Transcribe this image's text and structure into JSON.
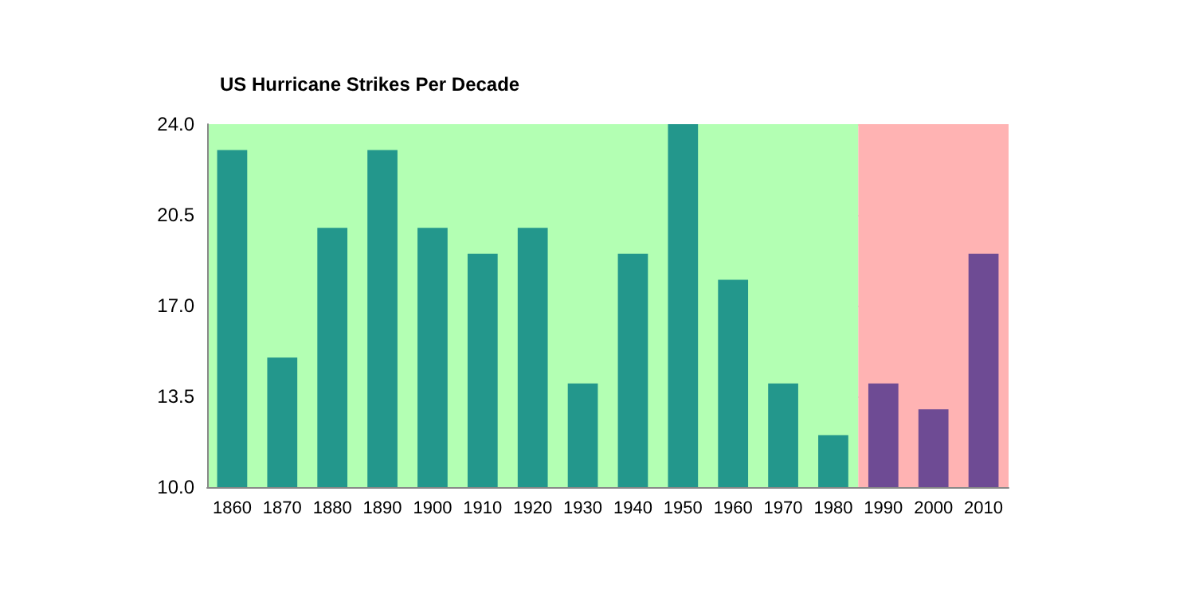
{
  "chart_data": {
    "type": "bar",
    "title": "US Hurricane Strikes Per Decade",
    "x": [
      1860,
      1870,
      1880,
      1890,
      1900,
      1910,
      1920,
      1930,
      1940,
      1950,
      1960,
      1970,
      1980,
      1990,
      2000,
      2010
    ],
    "values": [
      23,
      15,
      20,
      23,
      20,
      19,
      20,
      14,
      19,
      24,
      18,
      14,
      12,
      14,
      13,
      19
    ],
    "colors": [
      "#23978c",
      "#23978c",
      "#23978c",
      "#23978c",
      "#23978c",
      "#23978c",
      "#23978c",
      "#23978c",
      "#23978c",
      "#23978c",
      "#23978c",
      "#23978c",
      "#23978c",
      "#6e4b94",
      "#6e4b94",
      "#6e4b94"
    ],
    "xlim": [
      1855,
      2015
    ],
    "xticks": [
      1860,
      1870,
      1880,
      1890,
      1900,
      1910,
      1920,
      1930,
      1940,
      1950,
      1960,
      1970,
      1980,
      1990,
      2000,
      2010
    ],
    "ylim": [
      10,
      24
    ],
    "yticks": [
      {
        "value": 10,
        "label": "10.0"
      },
      {
        "value": 13.5,
        "label": "13.5"
      },
      {
        "value": 17,
        "label": "17.0"
      },
      {
        "value": 20.5,
        "label": "20.5"
      },
      {
        "value": 24,
        "label": "24.0"
      }
    ],
    "bands": [
      {
        "axis": "x",
        "from": 1855,
        "to": 1985,
        "color": "#b3ffb3"
      },
      {
        "axis": "x",
        "from": 1985,
        "to": 2015,
        "color": "#ffb3b3"
      }
    ],
    "grid": "y"
  }
}
